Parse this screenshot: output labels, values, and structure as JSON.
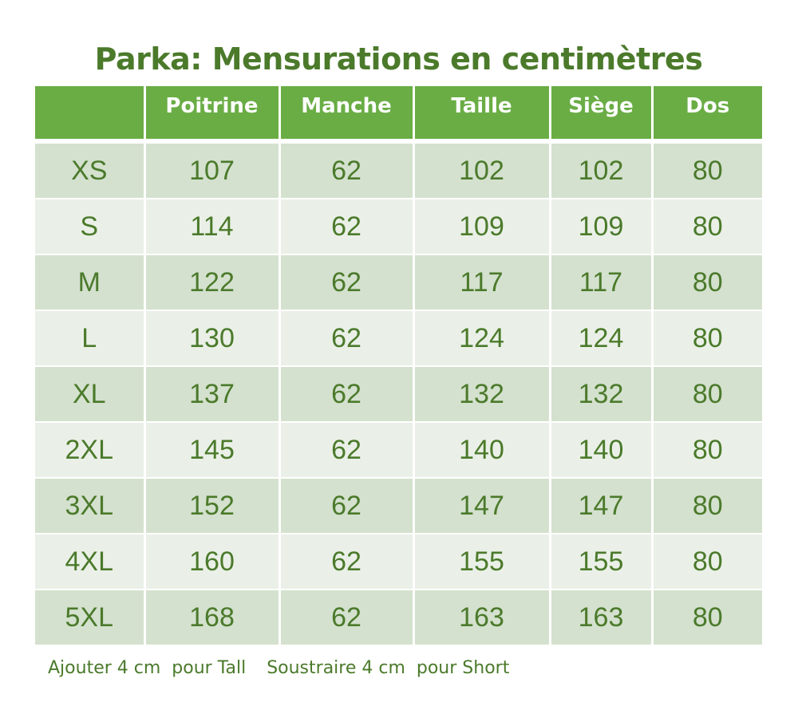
{
  "title": "Parka: Mensurations en centimètres",
  "table": {
    "headers": [
      "",
      "Poitrine",
      "Manche",
      "Taille",
      "Siège",
      "Dos"
    ],
    "rows": [
      [
        "XS",
        "107",
        "62",
        "102",
        "102",
        "80"
      ],
      [
        "S",
        "114",
        "62",
        "109",
        "109",
        "80"
      ],
      [
        "M",
        "122",
        "62",
        "117",
        "117",
        "80"
      ],
      [
        "L",
        "130",
        "62",
        "124",
        "124",
        "80"
      ],
      [
        "XL",
        "137",
        "62",
        "132",
        "132",
        "80"
      ],
      [
        "2XL",
        "145",
        "62",
        "140",
        "140",
        "80"
      ],
      [
        "3XL",
        "152",
        "62",
        "147",
        "147",
        "80"
      ],
      [
        "4XL",
        "160",
        "62",
        "155",
        "155",
        "80"
      ],
      [
        "5XL",
        "168",
        "62",
        "163",
        "163",
        "80"
      ]
    ]
  },
  "footnotes": {
    "tall": "Ajouter 4 cm  pour Tall",
    "short": "Soustraire 4 cm  pour Short"
  },
  "colors": {
    "header_green": "#6aad45",
    "text_green": "#4b7a2b",
    "row_dark": "#d4e1ce",
    "row_light": "#eaf0e7"
  }
}
